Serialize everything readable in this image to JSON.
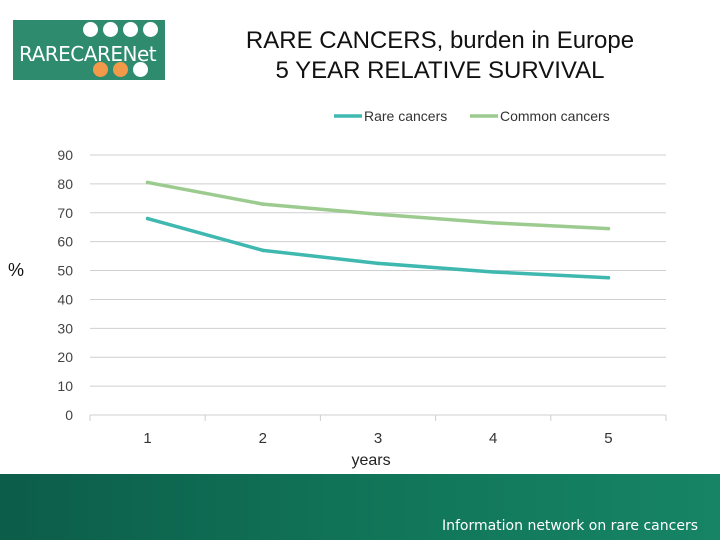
{
  "logo": {
    "text": "RARECARENet"
  },
  "header": {
    "title_line1": "RARE CANCERS, burden in Europe",
    "title_line2": "5 YEAR RELATIVE SURVIVAL"
  },
  "footer": {
    "text": "Information network on rare cancers"
  },
  "colors": {
    "rare": "#3fb8b0",
    "common": "#9ccb8f",
    "brand": "#2e8b6e",
    "accent": "#f39a4a"
  },
  "chart_data": {
    "type": "line",
    "title": "",
    "xlabel": "years",
    "ylabel": "%",
    "categories": [
      "1",
      "2",
      "3",
      "4",
      "5"
    ],
    "ylim": [
      0,
      90
    ],
    "yticks": [
      0,
      10,
      20,
      30,
      40,
      50,
      60,
      70,
      80,
      90
    ],
    "grid": true,
    "legend_position": "top",
    "series": [
      {
        "name": "Rare cancers",
        "values": [
          68,
          57,
          52.5,
          49.5,
          47.5
        ]
      },
      {
        "name": "Common cancers",
        "values": [
          80.5,
          73,
          69.5,
          66.5,
          64.5
        ]
      }
    ]
  }
}
